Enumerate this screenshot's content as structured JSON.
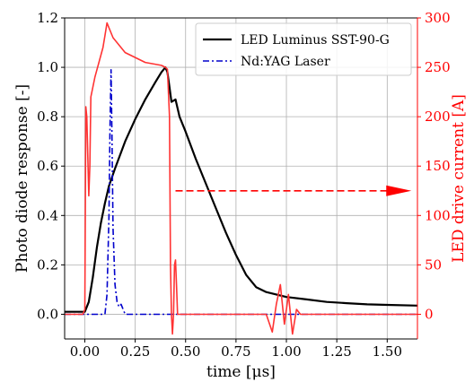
{
  "chart_data": {
    "type": "line",
    "xlabel": "time [μs]",
    "ylabel_left": "Photo diode response [-]",
    "ylabel_right": "LED drive current [A]",
    "xlim": [
      -0.1,
      1.65
    ],
    "ylim_left": [
      -0.1,
      1.2
    ],
    "ylim_right": [
      -25,
      300
    ],
    "xticks": [
      "0.00",
      "0.25",
      "0.50",
      "0.75",
      "1.00",
      "1.25",
      "1.50"
    ],
    "xtick_values": [
      0,
      0.25,
      0.5,
      0.75,
      1.0,
      1.25,
      1.5
    ],
    "yticks_left": [
      "0.0",
      "0.2",
      "0.4",
      "0.6",
      "0.8",
      "1.0",
      "1.2"
    ],
    "ytick_values_left": [
      0,
      0.2,
      0.4,
      0.6,
      0.8,
      1.0,
      1.2
    ],
    "yticks_right": [
      "0",
      "50",
      "100",
      "150",
      "200",
      "250",
      "300"
    ],
    "ytick_values_right": [
      0,
      50,
      100,
      150,
      200,
      250,
      300
    ],
    "grid": true,
    "legend_position": "top-right",
    "colors": {
      "led": "#000000",
      "laser": "#0000cc",
      "current": "#ff3333",
      "right_axis": "#ff0000"
    },
    "series": [
      {
        "name": "LED Luminus SST-90-G",
        "axis": "left",
        "x": [
          -0.1,
          0.0,
          0.02,
          0.04,
          0.06,
          0.08,
          0.1,
          0.12,
          0.15,
          0.2,
          0.25,
          0.3,
          0.35,
          0.38,
          0.4,
          0.41,
          0.42,
          0.43,
          0.45,
          0.47,
          0.5,
          0.55,
          0.6,
          0.65,
          0.7,
          0.75,
          0.8,
          0.85,
          0.9,
          0.95,
          1.0,
          1.1,
          1.2,
          1.3,
          1.4,
          1.5,
          1.65
        ],
        "y": [
          0.01,
          0.01,
          0.05,
          0.15,
          0.27,
          0.37,
          0.45,
          0.52,
          0.59,
          0.7,
          0.79,
          0.87,
          0.94,
          0.98,
          1.0,
          0.98,
          0.92,
          0.86,
          0.87,
          0.8,
          0.74,
          0.63,
          0.53,
          0.43,
          0.33,
          0.24,
          0.16,
          0.11,
          0.09,
          0.08,
          0.07,
          0.06,
          0.05,
          0.045,
          0.04,
          0.038,
          0.035
        ]
      },
      {
        "name": "Nd:YAG Laser",
        "axis": "left",
        "x": [
          -0.1,
          0.1,
          0.11,
          0.12,
          0.125,
          0.13,
          0.135,
          0.14,
          0.15,
          0.16,
          0.17,
          0.18,
          0.2,
          0.3,
          1.0,
          1.65
        ],
        "y": [
          0.0,
          0.0,
          0.08,
          0.4,
          0.75,
          0.99,
          0.7,
          0.35,
          0.12,
          0.05,
          0.03,
          0.04,
          0.0,
          0.0,
          0.0,
          0.0
        ],
        "style": "dashdot"
      },
      {
        "name": "",
        "axis": "right",
        "x": [
          -0.1,
          -0.01,
          0.0,
          0.005,
          0.01,
          0.015,
          0.02,
          0.025,
          0.03,
          0.05,
          0.07,
          0.09,
          0.1,
          0.11,
          0.12,
          0.14,
          0.2,
          0.3,
          0.38,
          0.4,
          0.41,
          0.42,
          0.425,
          0.43,
          0.435,
          0.44,
          0.445,
          0.45,
          0.455,
          0.46,
          0.47,
          0.9,
          0.93,
          0.95,
          0.97,
          0.99,
          1.01,
          1.03,
          1.05,
          1.07,
          1.1,
          1.2,
          1.65
        ],
        "y": [
          0,
          0,
          5,
          210,
          200,
          160,
          120,
          150,
          220,
          240,
          255,
          270,
          282,
          295,
          290,
          280,
          265,
          255,
          252,
          250,
          248,
          200,
          50,
          0,
          -20,
          0,
          50,
          55,
          30,
          0,
          0,
          0,
          -18,
          10,
          30,
          -10,
          20,
          -20,
          5,
          0,
          0,
          0,
          0
        ]
      }
    ],
    "annotation": {
      "type": "arrow",
      "x0": 0.45,
      "x1": 1.62,
      "y": 125,
      "axis": "right"
    }
  }
}
